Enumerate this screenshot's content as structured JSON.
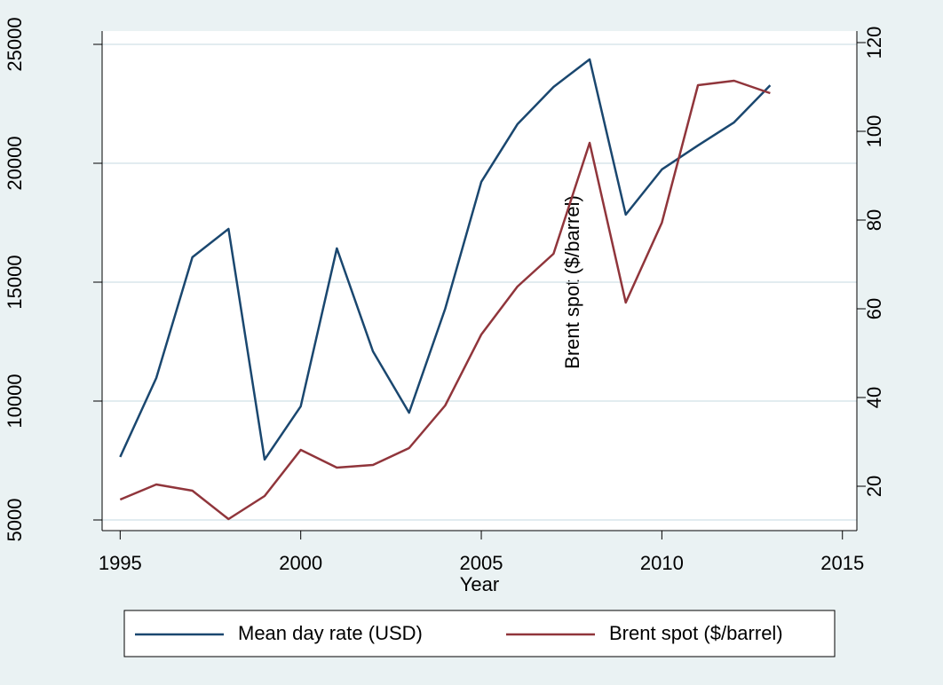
{
  "chart_data": {
    "type": "line",
    "x": [
      1995,
      1996,
      1997,
      1998,
      1999,
      2000,
      2001,
      2002,
      2003,
      2004,
      2005,
      2006,
      2007,
      2008,
      2009,
      2010,
      2011,
      2012,
      2013
    ],
    "series": [
      {
        "name": "Mean day rate (USD)",
        "color": "#1a476f",
        "axis": "y",
        "values": [
          7650,
          10970,
          16050,
          17240,
          7540,
          9780,
          16420,
          12090,
          9510,
          13880,
          19220,
          21640,
          23210,
          24370,
          17840,
          19740,
          20750,
          21720,
          23280
        ]
      },
      {
        "name": "Brent spot ($/barrel)",
        "color": "#90353b",
        "axis": "y2",
        "values": [
          17,
          20.4,
          19,
          12.6,
          17.8,
          28.2,
          24.2,
          24.8,
          28.6,
          38.2,
          54.2,
          65,
          72.4,
          97.4,
          61.4,
          79.4,
          110.4,
          111.4,
          108.6
        ]
      }
    ],
    "xlabel": "Year",
    "y2label": "Brent spot ($/barrel)",
    "xlim": [
      1994.5,
      2015.4
    ],
    "xticks": [
      1995,
      2000,
      2005,
      2010,
      2015
    ],
    "ylim": [
      4552,
      25560
    ],
    "yticks": [
      5000,
      10000,
      15000,
      20000,
      25000
    ],
    "y2lim": [
      10,
      122.6
    ],
    "y2ticks": [
      20,
      40,
      60,
      80,
      100,
      120
    ],
    "grid": true,
    "legend": "bottom"
  }
}
